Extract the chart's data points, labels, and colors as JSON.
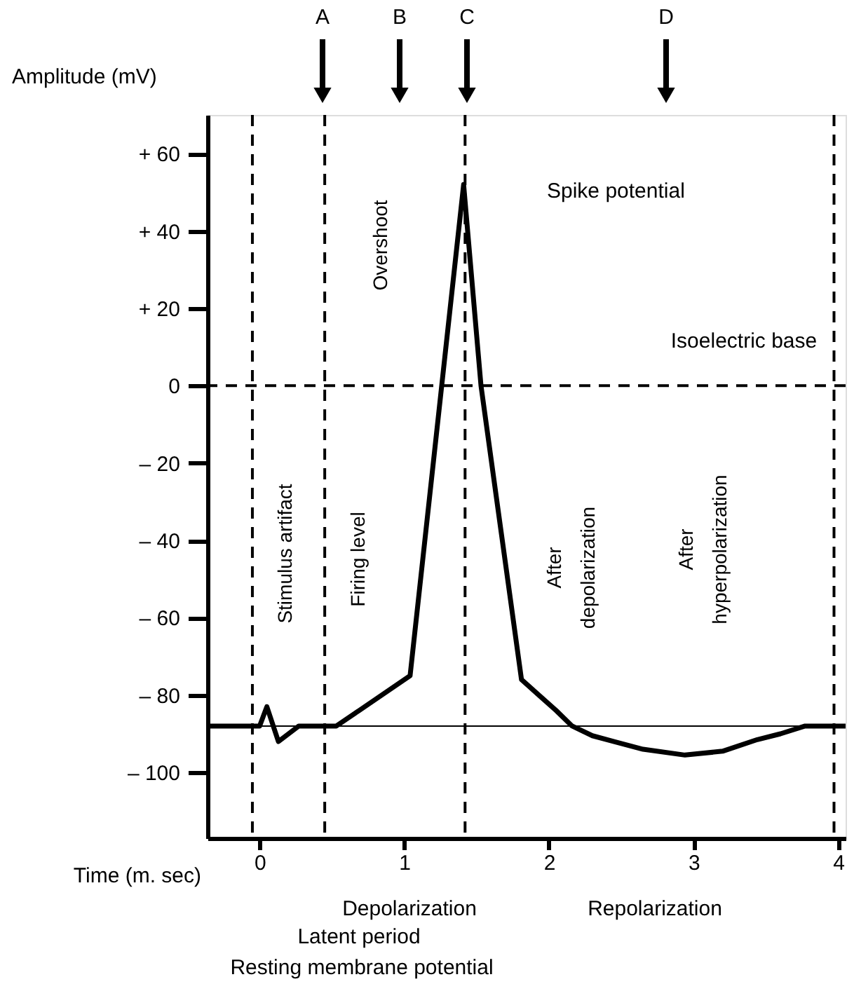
{
  "chart_data": {
    "type": "line",
    "xlabel": "Time (m. sec)",
    "ylabel": "Amplitude (mV)",
    "x": [
      -0.36,
      0.0,
      0.05,
      0.13,
      0.27,
      0.53,
      1.04,
      1.41,
      1.53,
      1.81,
      2.05,
      2.16,
      2.3,
      2.45,
      2.65,
      2.94,
      3.2,
      3.44,
      3.6,
      3.77,
      4.05
    ],
    "series": [
      {
        "color": "#000000",
        "values": [
          -88,
          -88,
          -83,
          -92,
          -88,
          -88,
          -75,
          52,
          0,
          -76,
          -84,
          -88,
          -90.5,
          -92,
          -94,
          -95.5,
          -94.5,
          -91.5,
          -90,
          -88,
          -88
        ]
      }
    ],
    "xlim": [
      -0.36,
      4.05
    ],
    "ylim": [
      -117,
      70
    ],
    "xticks": [
      0,
      1,
      2,
      3,
      4
    ],
    "yticks": [
      {
        "value": 60,
        "label": "+ 60"
      },
      {
        "value": 40,
        "label": "+ 40"
      },
      {
        "value": 20,
        "label": "+ 20"
      },
      0,
      {
        "value": -20,
        "label": "– 20"
      },
      {
        "value": -40,
        "label": "– 40"
      },
      {
        "value": -60,
        "label": "– 60"
      },
      {
        "value": -80,
        "label": "– 80"
      },
      {
        "value": -100,
        "label": "– 100"
      }
    ],
    "grid": false,
    "legend": false,
    "marker": "none",
    "line_style": "solid",
    "ref_lines": [
      {
        "axis": "y",
        "value": 0,
        "label": "Isoelectric base",
        "line_style": "dashed"
      },
      {
        "axis": "y",
        "value": -88,
        "line_style": "solid"
      },
      {
        "axis": "x",
        "value": -0.05,
        "line_style": "dashed"
      },
      {
        "axis": "x",
        "value": 0.45,
        "line_style": "dashed"
      },
      {
        "axis": "x",
        "value": 1.42,
        "line_style": "dashed"
      },
      {
        "axis": "x",
        "value": 3.97,
        "line_style": "dashed"
      }
    ],
    "annotations": [
      "Spike potential",
      "Overshoot",
      "Stimulus artifact",
      "Firing level",
      "After\ndepolarization",
      "After\nhyperpolarization",
      "A",
      "B",
      "C",
      "D",
      "Depolarization",
      "Repolarization",
      "Latent period",
      "Resting membrane potential"
    ]
  }
}
